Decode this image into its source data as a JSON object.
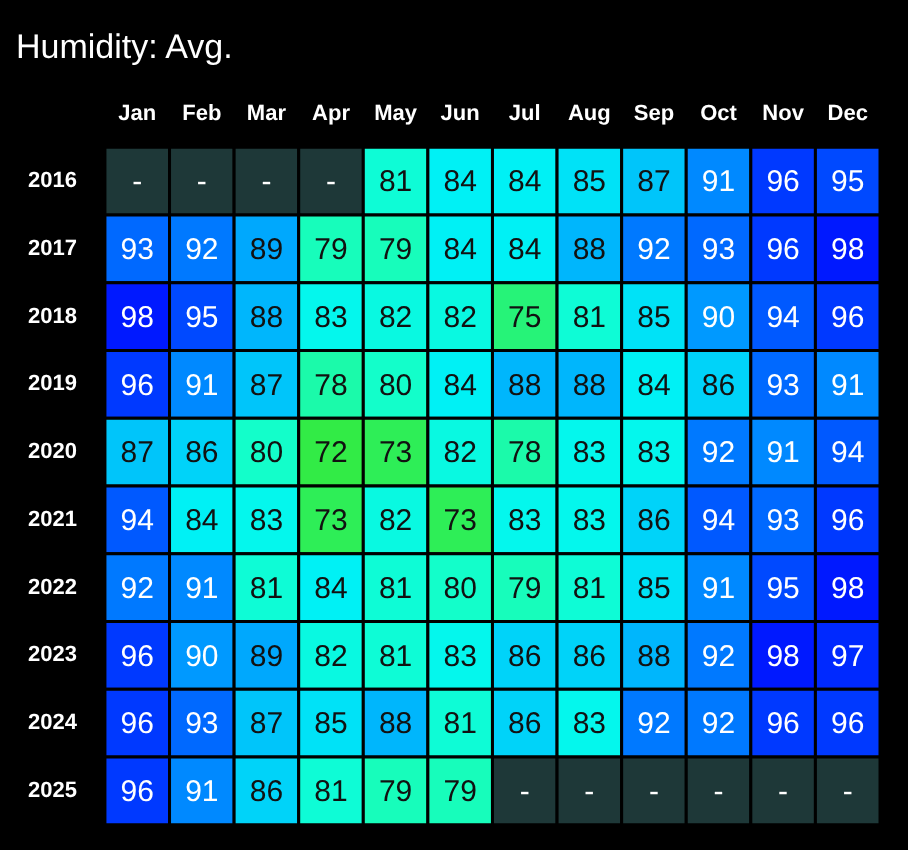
{
  "chart_data": {
    "type": "heatmap",
    "title": "Humidity: Avg.",
    "categories": [
      "Jan",
      "Feb",
      "Mar",
      "Apr",
      "May",
      "Jun",
      "Jul",
      "Aug",
      "Sep",
      "Oct",
      "Nov",
      "Dec"
    ],
    "y_categories": [
      "2016",
      "2017",
      "2018",
      "2019",
      "2020",
      "2021",
      "2022",
      "2023",
      "2024",
      "2025"
    ],
    "cells": [
      [
        null,
        null,
        null,
        null,
        81,
        84,
        84,
        85,
        87,
        91,
        96,
        95
      ],
      [
        93,
        92,
        89,
        79,
        79,
        84,
        84,
        88,
        92,
        93,
        96,
        98
      ],
      [
        98,
        95,
        88,
        83,
        82,
        82,
        75,
        81,
        85,
        90,
        94,
        96
      ],
      [
        96,
        91,
        87,
        78,
        80,
        84,
        88,
        88,
        84,
        86,
        93,
        91
      ],
      [
        87,
        86,
        80,
        72,
        73,
        82,
        78,
        83,
        83,
        92,
        91,
        94
      ],
      [
        94,
        84,
        83,
        73,
        82,
        73,
        83,
        83,
        86,
        94,
        93,
        96
      ],
      [
        92,
        91,
        81,
        84,
        81,
        80,
        79,
        81,
        85,
        91,
        95,
        98
      ],
      [
        96,
        90,
        89,
        82,
        81,
        83,
        86,
        86,
        88,
        92,
        98,
        97
      ],
      [
        96,
        93,
        87,
        85,
        88,
        81,
        86,
        83,
        92,
        92,
        96,
        96
      ],
      [
        96,
        91,
        86,
        81,
        79,
        79,
        null,
        null,
        null,
        null,
        null,
        null
      ]
    ],
    "cell_labels": [
      [
        "-",
        "-",
        "-",
        "-",
        "81",
        "84",
        "84",
        "85",
        "87",
        "91",
        "96",
        "95"
      ],
      [
        "93",
        "92",
        "89",
        "79",
        "79",
        "84",
        "84",
        "88",
        "92",
        "93",
        "96",
        "98"
      ],
      [
        "98",
        "95",
        "88",
        "83",
        "82",
        "82",
        "75",
        "81",
        "85",
        "90",
        "94",
        "96"
      ],
      [
        "96",
        "91",
        "87",
        "78",
        "80",
        "84",
        "88",
        "88",
        "84",
        "86",
        "93",
        "91"
      ],
      [
        "87",
        "86",
        "80",
        "72",
        "73",
        "82",
        "78",
        "83",
        "83",
        "92",
        "91",
        "94"
      ],
      [
        "94",
        "84",
        "83",
        "73",
        "82",
        "73",
        "83",
        "83",
        "86",
        "94",
        "93",
        "96"
      ],
      [
        "92",
        "91",
        "81",
        "84",
        "81",
        "80",
        "79",
        "81",
        "85",
        "91",
        "95",
        "98"
      ],
      [
        "96",
        "90",
        "89",
        "82",
        "81",
        "83",
        "86",
        "86",
        "88",
        "92",
        "98",
        "97"
      ],
      [
        "96",
        "93",
        "87",
        "85",
        "88",
        "81",
        "86",
        "83",
        "92",
        "92",
        "96",
        "96"
      ],
      [
        "96",
        "91",
        "86",
        "81",
        "79",
        "79",
        "-",
        "-",
        "-",
        "-",
        "-",
        "-"
      ]
    ]
  }
}
